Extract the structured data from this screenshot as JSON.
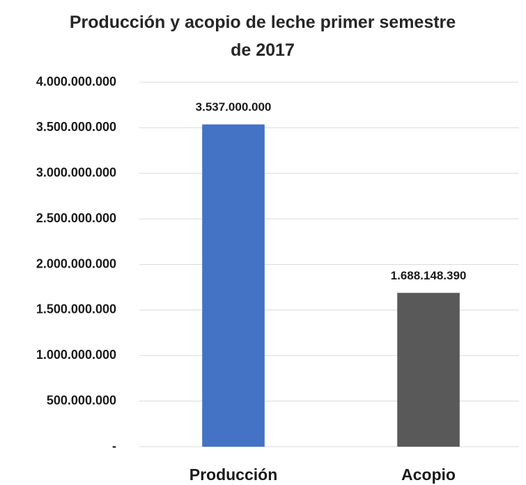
{
  "chart_data": {
    "type": "bar",
    "title": "Producción y acopio de leche primer semestre de 2017",
    "categories": [
      "Producción",
      "Acopio"
    ],
    "values": [
      3537000000,
      1688148390
    ],
    "value_labels": [
      "3.537.000.000",
      "1.688.148.390"
    ],
    "colors": [
      "#4472c4",
      "#595959"
    ],
    "ylim": [
      0,
      4000000000
    ],
    "yticks": [
      {
        "value": 0,
        "label": "-"
      },
      {
        "value": 500000000,
        "label": "500.000.000"
      },
      {
        "value": 1000000000,
        "label": "1.000.000.000"
      },
      {
        "value": 1500000000,
        "label": "1.500.000.000"
      },
      {
        "value": 2000000000,
        "label": "2.000.000.000"
      },
      {
        "value": 2500000000,
        "label": "2.500.000.000"
      },
      {
        "value": 3000000000,
        "label": "3.000.000.000"
      },
      {
        "value": 3500000000,
        "label": "3.500.000.000"
      },
      {
        "value": 4000000000,
        "label": "4.000.000.000"
      }
    ],
    "grid": true
  }
}
